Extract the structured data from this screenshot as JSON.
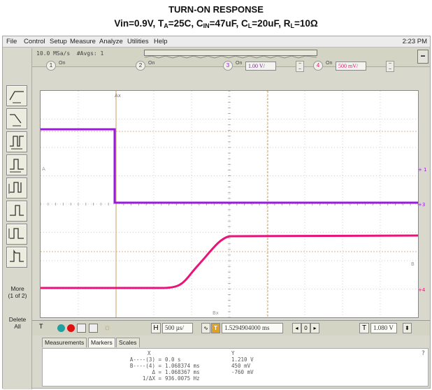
{
  "caption": {
    "title": "TURN-ON RESPONSE",
    "subtitle_parts": [
      "Vin=0.9V, T",
      "A",
      "=25C, C",
      "IN",
      "=47uF, C",
      "L",
      "=20uF, R",
      "L",
      "=10Ω"
    ]
  },
  "menu": {
    "items": [
      "File",
      "Control",
      "Setup",
      "Measure",
      "Analyze",
      "Utilities",
      "Help"
    ],
    "clock": "2:23 PM"
  },
  "acquisition": {
    "sample_rate": "10.0 MSa/s",
    "averages": "#Avgs: 1"
  },
  "channels": [
    {
      "num": "1",
      "on_label": "On",
      "scale": ""
    },
    {
      "num": "2",
      "on_label": "On",
      "scale": ""
    },
    {
      "num": "3",
      "on_label": "On",
      "scale": "1.00 V/"
    },
    {
      "num": "4",
      "on_label": "On",
      "scale": "500 mV/"
    }
  ],
  "sidebar": {
    "more_label": "More\n(1 of 2)",
    "delete_label": "Delete\nAll"
  },
  "timebase": {
    "h_label": "H",
    "h_scale": "500 µs/",
    "t_marker": "T",
    "delay": "1.5294904000 ms",
    "t_label": "T",
    "trigger_level": "1.080 V"
  },
  "tabs": [
    "Measurements",
    "Markers",
    "Scales"
  ],
  "markers": {
    "header_x": "X",
    "header_y": "Y",
    "rows": [
      {
        "label": "A----(3) =",
        "x": "0.0 s",
        "y": "1.210 V"
      },
      {
        "label": "B----(4) =",
        "x": "1.068374 ms",
        "y": "450 mV"
      },
      {
        "label": "Δ =",
        "x": "1.068367 ms",
        "y": "-760 mV"
      },
      {
        "label": "1/ΔX =",
        "x": "936.0075 Hz",
        "y": ""
      }
    ]
  },
  "screen_labels": {
    "ax_top": "Ax",
    "a_left": "A",
    "bx_bottom": "Bx",
    "b_right": "B",
    "ch3_marker": "3",
    "ch4_marker": "4",
    "ch1_marker": "1"
  },
  "colors": {
    "ch3": "#9a1adf",
    "ch4": "#e8147a",
    "marker_a": "#d49a3a",
    "grid": "#c8c8c8"
  }
}
